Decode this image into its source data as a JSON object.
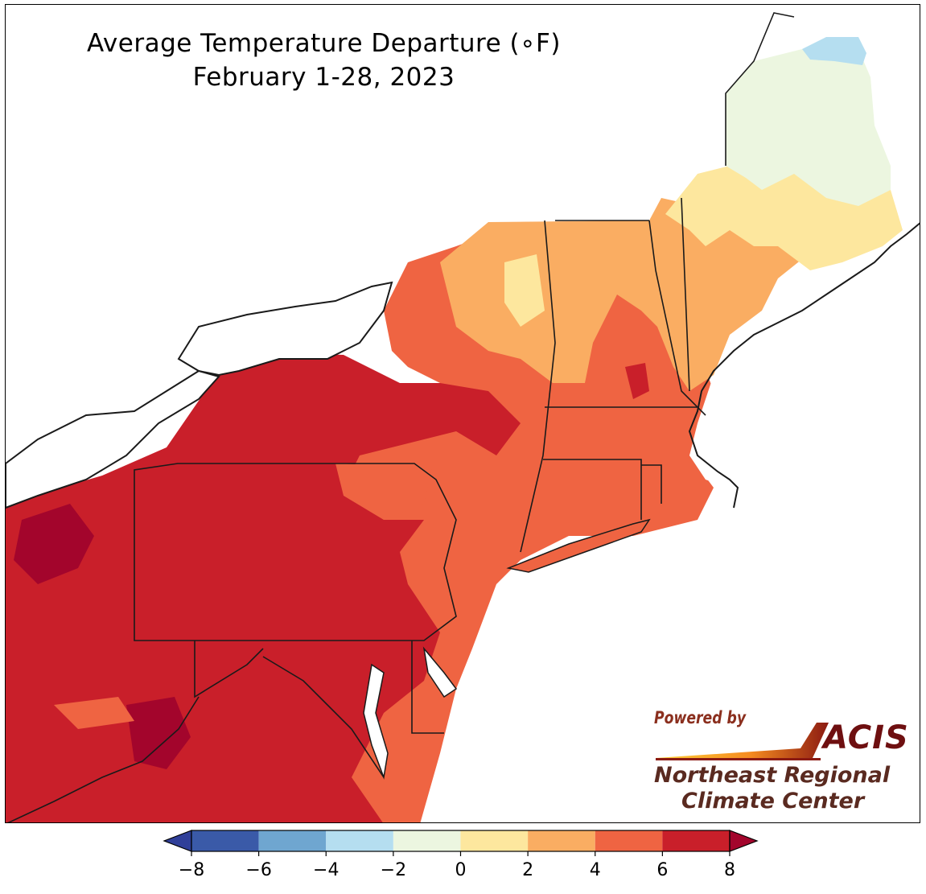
{
  "title": {
    "line1": "Average Temperature Departure (∘F)",
    "line2": "February 1-28, 2023"
  },
  "credit": {
    "powered_by": "Powered by",
    "acis": "ACIS",
    "org_line1": "Northeast Regional",
    "org_line2": "Climate Center"
  },
  "legend": {
    "unit": "°F",
    "extend": "both",
    "bins": [
      {
        "from": -8,
        "to": -6,
        "color": "#3a5aa8"
      },
      {
        "from": -6,
        "to": -4,
        "color": "#6fa6d0"
      },
      {
        "from": -4,
        "to": -2,
        "color": "#b5def0"
      },
      {
        "from": -2,
        "to": 0,
        "color": "#ecf6e0"
      },
      {
        "from": 0,
        "to": 2,
        "color": "#fde79e"
      },
      {
        "from": 2,
        "to": 4,
        "color": "#faad62"
      },
      {
        "from": 4,
        "to": 6,
        "color": "#ef6442"
      },
      {
        "from": 6,
        "to": 8,
        "color": "#c91f2a"
      }
    ],
    "below_color": "#303f99",
    "above_color": "#a3052c",
    "ticks": [
      "−8",
      "−6",
      "−4",
      "−2",
      "0",
      "2",
      "4",
      "6",
      "8"
    ]
  },
  "map_colors": {
    "water": "#ffffff",
    "outline": "#1a1a1a",
    "county": "#7a3a30"
  }
}
